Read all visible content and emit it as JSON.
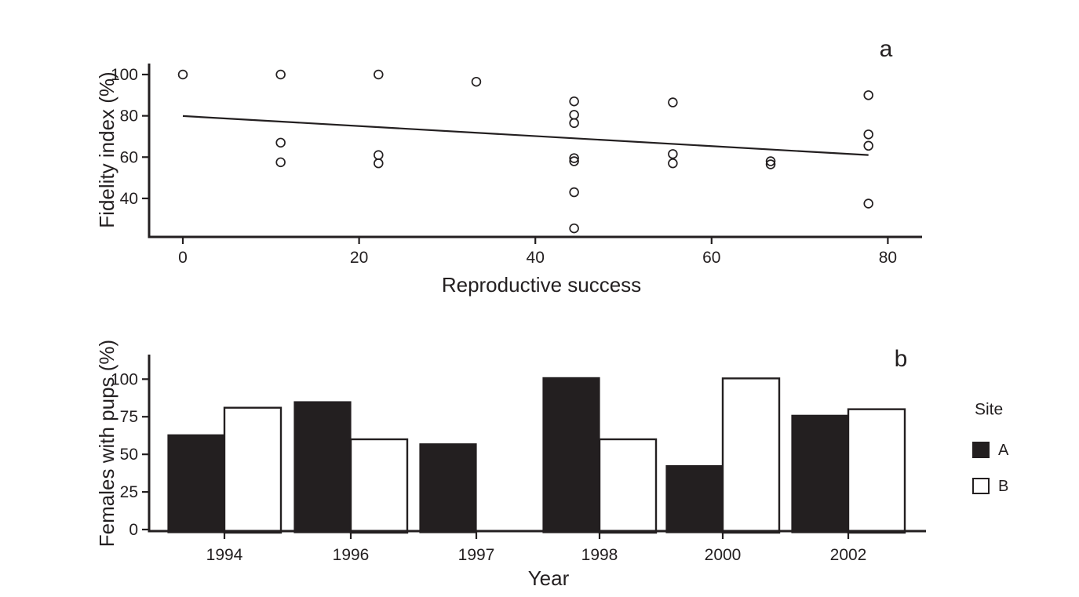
{
  "figure": {
    "background": "#ffffff",
    "ink_color": "#231f20",
    "description": "Two-panel statistical figure: scatter plot with regression line (a) and grouped bar chart with legend (b)"
  },
  "chart_data": [
    {
      "panel": "a",
      "type": "scatter",
      "xlabel": "Reproductive success",
      "ylabel": "Fidelity index (%)",
      "x_ticks": [
        0,
        20,
        40,
        60,
        80
      ],
      "y_ticks": [
        40,
        60,
        80,
        100
      ],
      "xlim": [
        -4,
        84
      ],
      "ylim": [
        21,
        107
      ],
      "grid": false,
      "marker": "open-circle",
      "points": [
        [
          0,
          100
        ],
        [
          11.1,
          100
        ],
        [
          11.1,
          67
        ],
        [
          11.1,
          57.5
        ],
        [
          22.2,
          100
        ],
        [
          22.2,
          61
        ],
        [
          22.2,
          57
        ],
        [
          33.3,
          96.5
        ],
        [
          44.4,
          87
        ],
        [
          44.4,
          80.5
        ],
        [
          44.4,
          76.5
        ],
        [
          44.4,
          59.5
        ],
        [
          44.4,
          58
        ],
        [
          44.4,
          43
        ],
        [
          44.4,
          25.5
        ],
        [
          55.6,
          86.5
        ],
        [
          55.6,
          61.5
        ],
        [
          55.6,
          57
        ],
        [
          66.7,
          58
        ],
        [
          66.7,
          56.5
        ],
        [
          77.8,
          90
        ],
        [
          77.8,
          71
        ],
        [
          77.8,
          65.5
        ],
        [
          77.8,
          37.5
        ]
      ],
      "regression_line": {
        "x1": 0,
        "y1": 79.9,
        "x2": 77.8,
        "y2": 61
      }
    },
    {
      "panel": "b",
      "type": "bar",
      "xlabel": "Year",
      "ylabel": "Females with pups (%)",
      "categories": [
        "1994",
        "1996",
        "1997",
        "1998",
        "2000",
        "2002"
      ],
      "y_ticks": [
        0,
        25,
        50,
        75,
        100
      ],
      "ylim": [
        0,
        116
      ],
      "grid": false,
      "legend": {
        "title": "Site",
        "position": "right",
        "entries": [
          {
            "label": "A",
            "fill": "black"
          },
          {
            "label": "B",
            "fill": "white"
          }
        ]
      },
      "series": [
        {
          "name": "A",
          "style": "filled-black",
          "values": [
            63,
            85,
            57,
            101,
            42.5,
            76
          ]
        },
        {
          "name": "B",
          "style": "open-white",
          "values": [
            81,
            60,
            null,
            60,
            100.5,
            80
          ]
        }
      ]
    }
  ]
}
